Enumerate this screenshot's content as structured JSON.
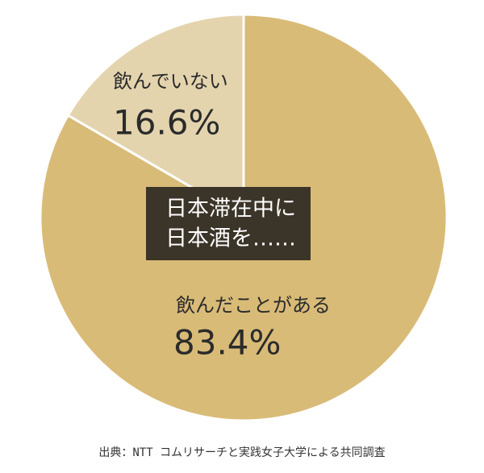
{
  "chart_data": {
    "type": "pie",
    "categories": [
      "飲んだことがある",
      "飲んでいない"
    ],
    "values": [
      83.4,
      16.6
    ],
    "value_labels": [
      "83.4%",
      "16.6%"
    ],
    "colors": [
      "#d9bb78",
      "#e4d4ae"
    ],
    "center_text": [
      "日本滞在中に",
      "日本酒を……"
    ],
    "source": "出典：NTT コムリサーチと実践女子大学による共同調査"
  }
}
